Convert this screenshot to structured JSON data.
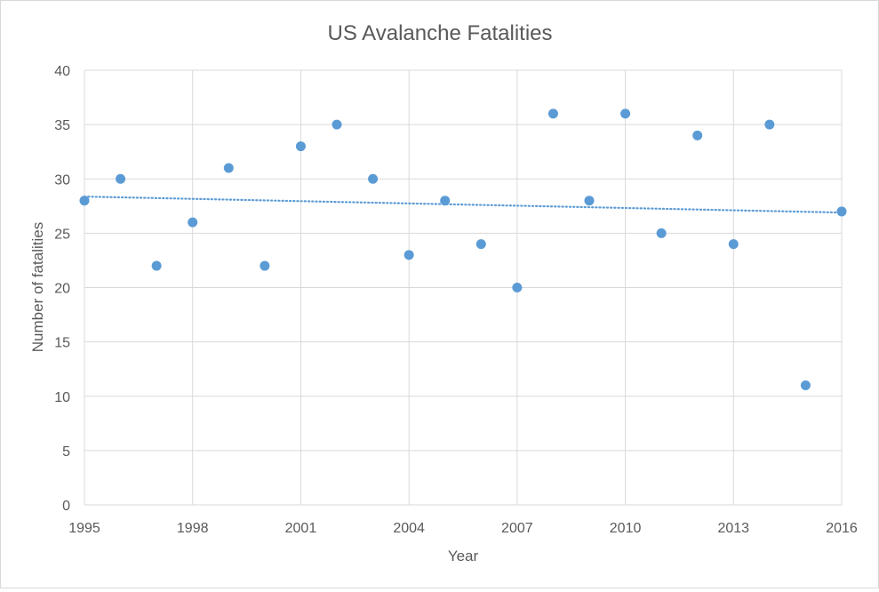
{
  "chart_data": {
    "type": "scatter",
    "title": "US Avalanche Fatalities",
    "xlabel": "Year",
    "ylabel": "Number of fatalities",
    "xlim": [
      1995,
      2016
    ],
    "ylim": [
      0,
      40
    ],
    "x_ticks": [
      1995,
      1998,
      2001,
      2004,
      2007,
      2010,
      2013,
      2016
    ],
    "y_ticks": [
      0,
      5,
      10,
      15,
      20,
      25,
      30,
      35,
      40
    ],
    "grid": true,
    "legend": "none",
    "marker_color": "#5b9bd5",
    "trendline": {
      "type": "linear",
      "style": "dotted",
      "color": "#5b9bd5"
    },
    "x": [
      1995,
      1996,
      1997,
      1998,
      1999,
      2000,
      2001,
      2002,
      2003,
      2004,
      2005,
      2006,
      2007,
      2008,
      2009,
      2010,
      2011,
      2012,
      2013,
      2014,
      2015,
      2016
    ],
    "y": [
      28,
      30,
      22,
      26,
      31,
      22,
      33,
      35,
      30,
      23,
      28,
      24,
      20,
      36,
      28,
      36,
      25,
      34,
      24,
      35,
      11,
      27
    ]
  }
}
